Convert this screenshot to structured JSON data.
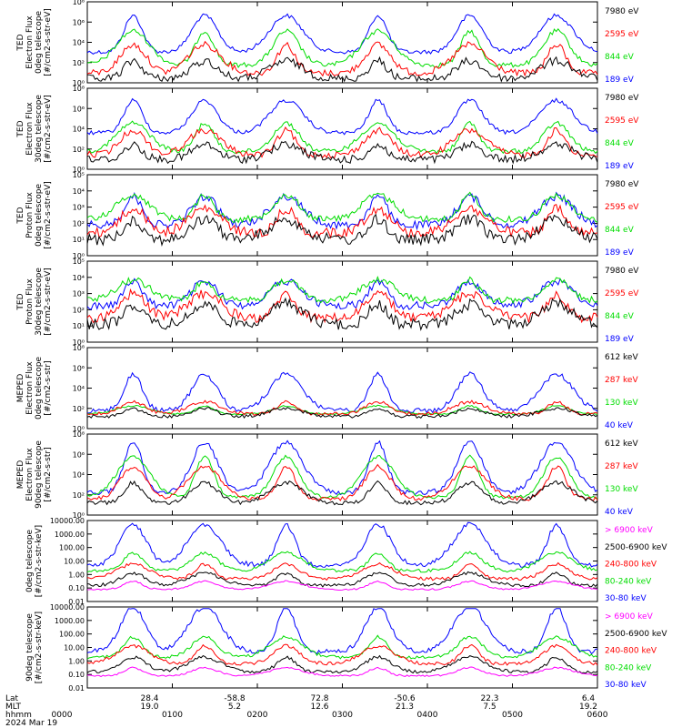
{
  "colors": {
    "blue": "#0000ff",
    "red": "#ff0000",
    "green": "#00dd00",
    "black": "#000000",
    "magenta": "#ff00ff"
  },
  "chart_data": {
    "type": "line",
    "x_axis": {
      "rows": [
        {
          "label": "Lat",
          "values": [
            "28.4",
            "-58.8",
            "72.8",
            "-50.6",
            "22.3",
            "6.4"
          ]
        },
        {
          "label": "MLT",
          "values": [
            "19.0",
            "5.2",
            "12.6",
            "21.3",
            "7.5",
            "19.2"
          ]
        },
        {
          "label": "hhmm",
          "values": [
            "0000",
            "0100",
            "0200",
            "0300",
            "0400",
            "0500",
            "0600"
          ]
        }
      ],
      "date": "2024 Mar 19",
      "time_range_hhmm": [
        "0000",
        "0600"
      ]
    },
    "panels": [
      {
        "ylabel": [
          "TED",
          "Electron Flux",
          "0deg telescope",
          "[#/cm2-s-str-eV]"
        ],
        "yscale": "log",
        "yticks": [
          "10⁸",
          "10⁶",
          "10⁴",
          "10²",
          "10⁰"
        ],
        "series": [
          {
            "name": "7980 eV",
            "color": "black"
          },
          {
            "name": "2595 eV",
            "color": "red"
          },
          {
            "name": "844 eV",
            "color": "green"
          },
          {
            "name": "189 eV",
            "color": "blue"
          }
        ]
      },
      {
        "ylabel": [
          "TED",
          "Electron Flux",
          "30deg telescope",
          "[#/cm2-s-str-eV]"
        ],
        "yscale": "log",
        "yticks": [
          "10⁸",
          "10⁶",
          "10⁴",
          "10²",
          "10⁰"
        ],
        "series": [
          {
            "name": "7980 eV",
            "color": "black"
          },
          {
            "name": "2595 eV",
            "color": "red"
          },
          {
            "name": "844 eV",
            "color": "green"
          },
          {
            "name": "189 eV",
            "color": "blue"
          }
        ]
      },
      {
        "ylabel": [
          "TED",
          "Proton Flux",
          "0deg telescope",
          "[#/cm2-s-str-eV]"
        ],
        "yscale": "log",
        "yticks": [
          "10⁵",
          "10⁴",
          "10³",
          "10²",
          "10¹",
          "10⁰"
        ],
        "series": [
          {
            "name": "7980 eV",
            "color": "black"
          },
          {
            "name": "2595 eV",
            "color": "red"
          },
          {
            "name": "844 eV",
            "color": "green"
          },
          {
            "name": "189 eV",
            "color": "blue"
          }
        ]
      },
      {
        "ylabel": [
          "TED",
          "Proton Flux",
          "30deg telescope",
          "[#/cm2-s-str-eV]"
        ],
        "yscale": "log",
        "yticks": [
          "10⁵",
          "10⁴",
          "10³",
          "10²",
          "10¹",
          "10⁰"
        ],
        "series": [
          {
            "name": "7980 eV",
            "color": "black"
          },
          {
            "name": "2595 eV",
            "color": "red"
          },
          {
            "name": "844 eV",
            "color": "green"
          },
          {
            "name": "189 eV",
            "color": "blue"
          }
        ]
      },
      {
        "ylabel": [
          "MEPED",
          "Electron Flux",
          "0deg telescope",
          "[#/cm2-s-str]"
        ],
        "yscale": "log",
        "yticks": [
          "10⁸",
          "10⁶",
          "10⁴",
          "10²",
          "10⁰"
        ],
        "series": [
          {
            "name": "612 keV",
            "color": "black"
          },
          {
            "name": "287 keV",
            "color": "red"
          },
          {
            "name": "130 keV",
            "color": "green"
          },
          {
            "name": "40 keV",
            "color": "blue"
          }
        ]
      },
      {
        "ylabel": [
          "MEPED",
          "Electron Flux",
          "90deg telescope",
          "[#/cm2-s-str]"
        ],
        "yscale": "log",
        "yticks": [
          "10⁸",
          "10⁶",
          "10⁴",
          "10²",
          "10⁰"
        ],
        "series": [
          {
            "name": "612 keV",
            "color": "black"
          },
          {
            "name": "287 keV",
            "color": "red"
          },
          {
            "name": "130 keV",
            "color": "green"
          },
          {
            "name": "40 keV",
            "color": "blue"
          }
        ]
      },
      {
        "ylabel": [
          "0deg telescope",
          "[#/cm2-s-str-keV]"
        ],
        "yscale": "log",
        "yticks": [
          "10000.00",
          "1000.00",
          "100.00",
          "10.00",
          "1.00",
          "0.10",
          "0.01"
        ],
        "series": [
          {
            "name": "> 6900 keV",
            "color": "magenta"
          },
          {
            "name": "2500-6900 keV",
            "color": "black"
          },
          {
            "name": "240-800 keV",
            "color": "red"
          },
          {
            "name": "80-240 keV",
            "color": "green"
          },
          {
            "name": "30-80 keV",
            "color": "blue"
          }
        ]
      },
      {
        "ylabel": [
          "90deg telescope",
          "[#/cm2-s-str-keV]"
        ],
        "yscale": "log",
        "yticks": [
          "10000.00",
          "1000.00",
          "100.00",
          "10.00",
          "1.00",
          "0.10",
          "0.01"
        ],
        "series": [
          {
            "name": "> 6900 keV",
            "color": "magenta"
          },
          {
            "name": "2500-6900 keV",
            "color": "black"
          },
          {
            "name": "240-800 keV",
            "color": "red"
          },
          {
            "name": "80-240 keV",
            "color": "green"
          },
          {
            "name": "30-80 keV",
            "color": "blue"
          }
        ]
      }
    ]
  }
}
